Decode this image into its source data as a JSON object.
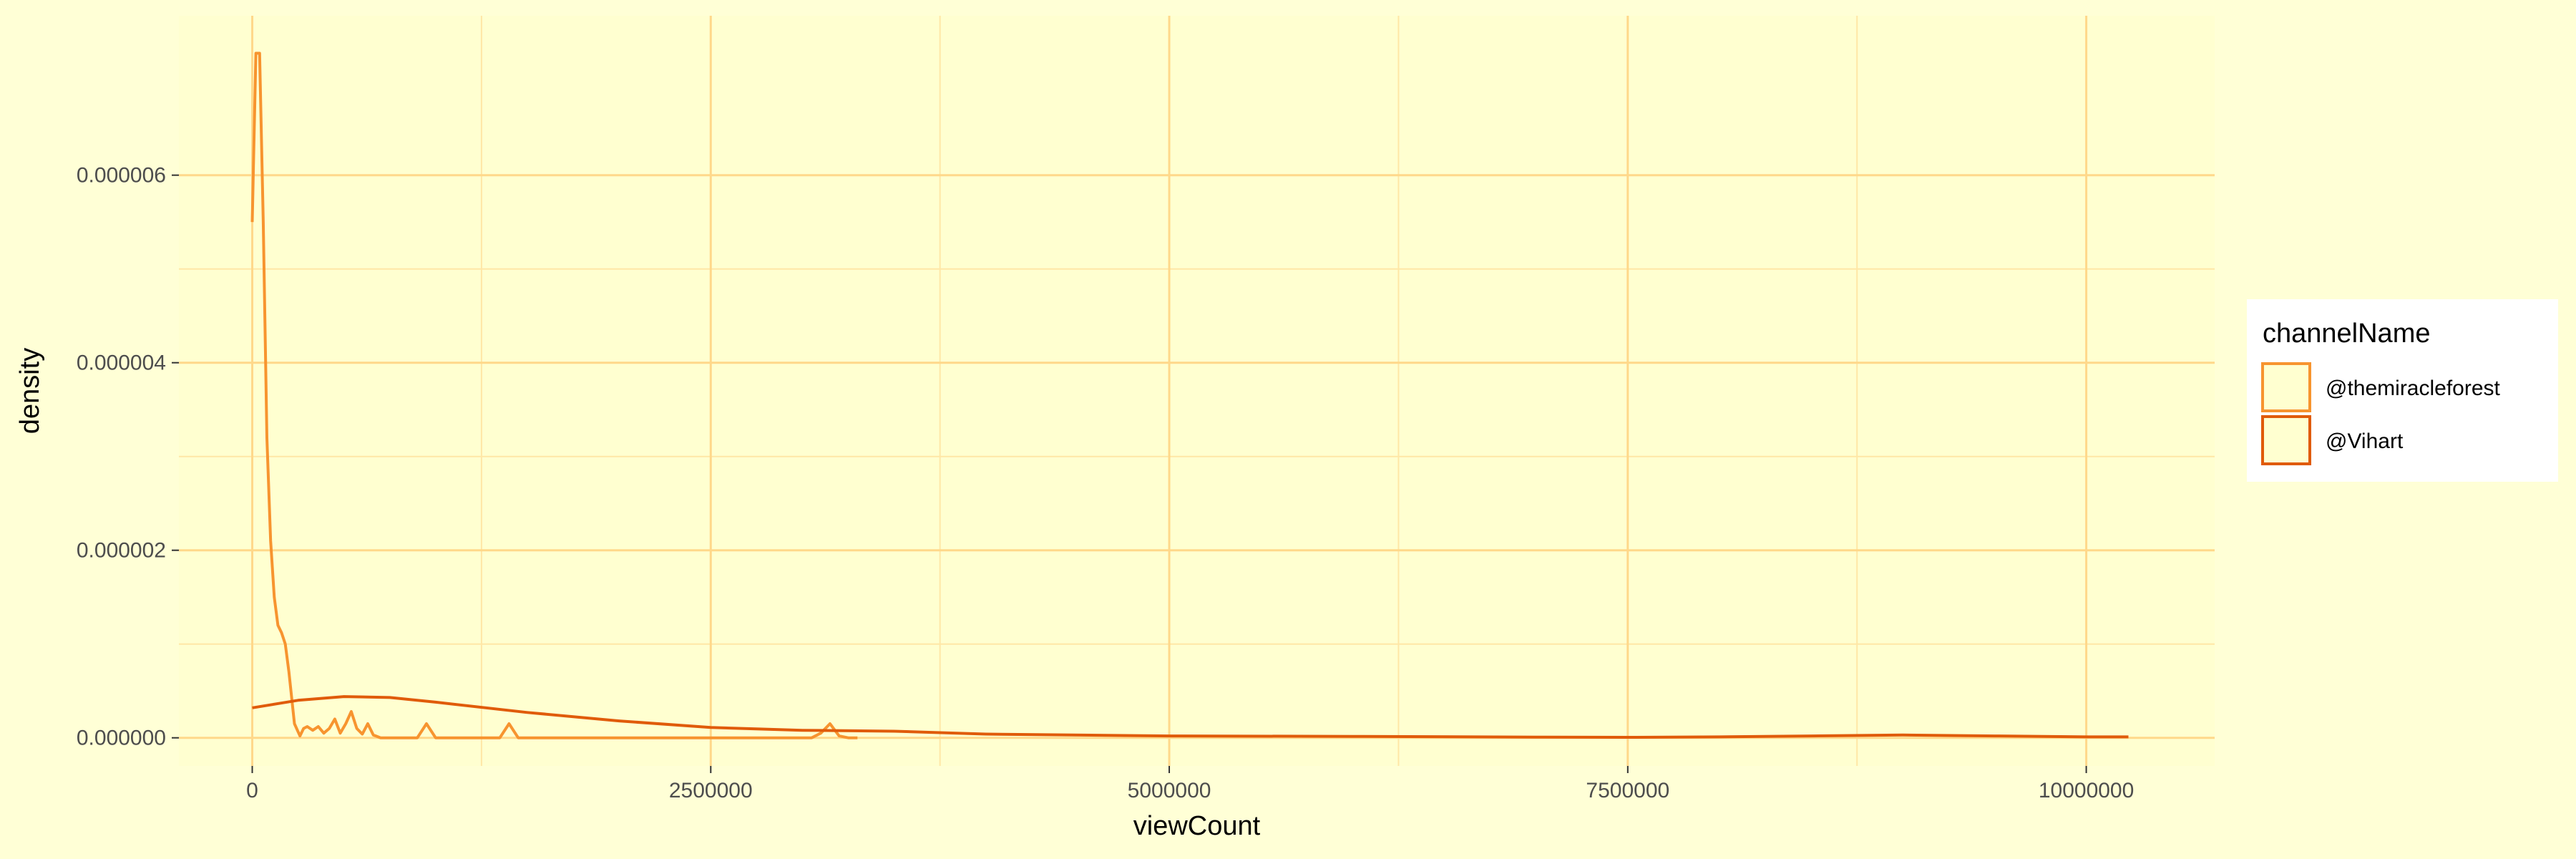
{
  "chart_data": {
    "type": "line",
    "subtype": "density",
    "title": "",
    "xlabel": "viewCount",
    "ylabel": "density",
    "xlim": [
      -400000,
      10700000
    ],
    "ylim": [
      -3e-07,
      7.7e-06
    ],
    "x_ticks": [
      0,
      2500000,
      5000000,
      7500000,
      10000000
    ],
    "x_tick_labels": [
      "0",
      "2500000",
      "5000000",
      "7500000",
      "10000000"
    ],
    "y_ticks": [
      0,
      2e-06,
      4e-06,
      6e-06
    ],
    "y_tick_labels": [
      "0.000000",
      "0.000002",
      "0.000004",
      "0.000006"
    ],
    "grid": true,
    "legend": {
      "title": "channelName",
      "position": "right"
    },
    "series": [
      {
        "name": "@themiracleforest",
        "color": "#F7942F",
        "x": [
          0,
          20000,
          40000,
          60000,
          80000,
          100000,
          120000,
          140000,
          160000,
          180000,
          200000,
          230000,
          260000,
          280000,
          300000,
          330000,
          360000,
          390000,
          420000,
          450000,
          480000,
          510000,
          540000,
          570000,
          600000,
          630000,
          660000,
          700000,
          740000,
          800000,
          900000,
          950000,
          1000000,
          1050000,
          1100000,
          1200000,
          1350000,
          1400000,
          1450000,
          1500000,
          1600000,
          2000000,
          2500000,
          3050000,
          3100000,
          3150000,
          3200000,
          3250000,
          3300000
        ],
        "values": [
          5.5e-06,
          7.3e-06,
          7.3e-06,
          5.5e-06,
          3.2e-06,
          2.1e-06,
          1.5e-06,
          1.2e-06,
          1.12e-06,
          1e-06,
          7e-07,
          1.5e-07,
          2e-08,
          1e-07,
          1.2e-07,
          8e-08,
          1.2e-07,
          5e-08,
          1e-07,
          2e-07,
          5e-08,
          1.5e-07,
          2.8e-07,
          1e-07,
          4e-08,
          1.5e-07,
          3e-08,
          0.0,
          0.0,
          0.0,
          0.0,
          1.5e-07,
          0.0,
          0.0,
          0.0,
          0.0,
          0.0,
          1.5e-07,
          0.0,
          0.0,
          0.0,
          0.0,
          0.0,
          0.0,
          5e-08,
          1.5e-07,
          2e-08,
          0.0,
          0.0
        ]
      },
      {
        "name": "@Vihart",
        "color": "#E05B0A",
        "x": [
          0,
          250000,
          500000,
          750000,
          1000000,
          1500000,
          2000000,
          2500000,
          3000000,
          3500000,
          4000000,
          5000000,
          6000000,
          7000000,
          7500000,
          8000000,
          8500000,
          9000000,
          9500000,
          10000000,
          10230000
        ],
        "values": [
          3.2e-07,
          4e-07,
          4.4e-07,
          4.3e-07,
          3.8e-07,
          2.7e-07,
          1.8e-07,
          1.1e-07,
          8e-08,
          7e-08,
          4e-08,
          2e-08,
          1.5e-08,
          8e-09,
          5e-09,
          1e-08,
          2e-08,
          3e-08,
          2e-08,
          1e-08,
          1e-08
        ]
      }
    ]
  }
}
